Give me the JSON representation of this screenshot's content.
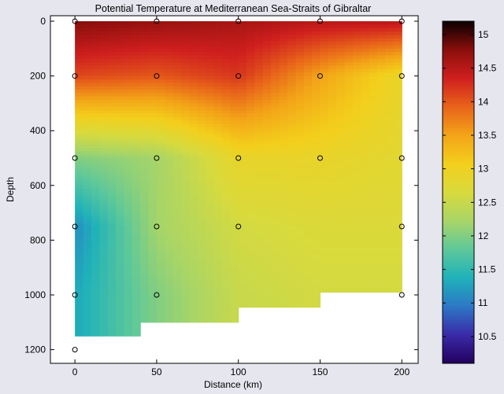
{
  "chart_data": {
    "type": "heatmap",
    "title": "Potential Temperature at Mediterranean Sea-Straits of Gibraltar",
    "xlabel": "Distance (km)",
    "ylabel": "Depth",
    "xlim": [
      -15,
      210
    ],
    "ylim": [
      1250,
      -20
    ],
    "x_ticks": [
      "0",
      "50",
      "100",
      "150",
      "200"
    ],
    "y_ticks": [
      "0",
      "200",
      "400",
      "600",
      "800",
      "1000",
      "1200"
    ],
    "colorbar": {
      "range": [
        10.1,
        15.2
      ],
      "ticks": [
        "10.5",
        "11",
        "11.5",
        "12",
        "12.5",
        "13",
        "13.5",
        "14",
        "14.5",
        "15"
      ],
      "colormap": [
        "#23005e",
        "#3a2aa8",
        "#2c78c6",
        "#1fb2b9",
        "#5ec89a",
        "#a9d567",
        "#d8da3d",
        "#f3cf1c",
        "#f3a418",
        "#e8631a",
        "#cf1f1e",
        "#8a0f0c",
        "#0a0000"
      ]
    },
    "stations_km": [
      0,
      50,
      100,
      150,
      200
    ],
    "sample_depths": [
      0,
      200,
      500,
      750,
      1000,
      1200
    ],
    "bottom_depth": [
      {
        "x_range": [
          0,
          40
        ],
        "depth": 1150
      },
      {
        "x_range": [
          40,
          100
        ],
        "depth": 1100
      },
      {
        "x_range": [
          100,
          150
        ],
        "depth": 1045
      },
      {
        "x_range": [
          150,
          200
        ],
        "depth": 990
      }
    ],
    "sample_points": [
      {
        "x": 0,
        "y": 0
      },
      {
        "x": 50,
        "y": 0
      },
      {
        "x": 100,
        "y": 0
      },
      {
        "x": 150,
        "y": 0
      },
      {
        "x": 200,
        "y": 0
      },
      {
        "x": 0,
        "y": 200
      },
      {
        "x": 50,
        "y": 200
      },
      {
        "x": 100,
        "y": 200
      },
      {
        "x": 150,
        "y": 200
      },
      {
        "x": 200,
        "y": 200
      },
      {
        "x": 0,
        "y": 500
      },
      {
        "x": 50,
        "y": 500
      },
      {
        "x": 100,
        "y": 500
      },
      {
        "x": 150,
        "y": 500
      },
      {
        "x": 200,
        "y": 500
      },
      {
        "x": 0,
        "y": 750
      },
      {
        "x": 50,
        "y": 750
      },
      {
        "x": 100,
        "y": 750
      },
      {
        "x": 200,
        "y": 750
      },
      {
        "x": 0,
        "y": 1000
      },
      {
        "x": 50,
        "y": 1000
      },
      {
        "x": 200,
        "y": 1000
      },
      {
        "x": 0,
        "y": 1200
      }
    ],
    "temperature_grid": {
      "x": [
        0,
        50,
        100,
        150,
        200
      ],
      "depth": [
        0,
        200,
        500,
        750,
        1000
      ],
      "values": [
        [
          14.8,
          14.7,
          14.6,
          14.5,
          14.5
        ],
        [
          14.1,
          14.0,
          14.2,
          13.5,
          12.9
        ],
        [
          12.0,
          12.2,
          12.9,
          12.9,
          12.8
        ],
        [
          11.1,
          12.2,
          12.6,
          12.7,
          12.7
        ],
        [
          11.3,
          12.0,
          12.5,
          12.6,
          12.6
        ]
      ]
    },
    "grid": false
  }
}
